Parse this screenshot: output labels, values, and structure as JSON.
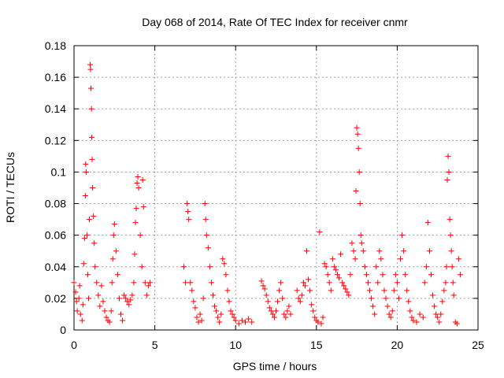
{
  "chart_data": {
    "type": "scatter",
    "title": "Day 068 of 2014, Rate Of TEC Index for receiver cnmr",
    "xlabel": "GPS time / hours",
    "ylabel": "ROTI / TECUs",
    "xlim": [
      0,
      25
    ],
    "ylim": [
      0,
      0.18
    ],
    "xticks": [
      0,
      5,
      10,
      15,
      20,
      25
    ],
    "yticks": [
      0,
      0.02,
      0.04,
      0.06,
      0.08,
      0.1,
      0.12,
      0.14,
      0.16,
      0.18
    ],
    "grid": true,
    "marker": "plus",
    "series_color": "#ff0000",
    "series": [
      {
        "name": "ROTI",
        "points": [
          [
            0.0,
            0.03
          ],
          [
            0.1,
            0.024
          ],
          [
            0.15,
            0.018
          ],
          [
            0.2,
            0.012
          ],
          [
            0.3,
            0.02
          ],
          [
            0.35,
            0.028
          ],
          [
            0.4,
            0.01
          ],
          [
            0.5,
            0.006
          ],
          [
            0.55,
            0.016
          ],
          [
            0.6,
            0.042
          ],
          [
            0.65,
            0.058
          ],
          [
            0.7,
            0.085
          ],
          [
            0.72,
            0.105
          ],
          [
            0.75,
            0.1
          ],
          [
            0.8,
            0.06
          ],
          [
            0.85,
            0.035
          ],
          [
            0.9,
            0.02
          ],
          [
            0.95,
            0.07
          ],
          [
            1.0,
            0.168
          ],
          [
            1.02,
            0.165
          ],
          [
            1.05,
            0.153
          ],
          [
            1.08,
            0.14
          ],
          [
            1.1,
            0.122
          ],
          [
            1.12,
            0.108
          ],
          [
            1.15,
            0.09
          ],
          [
            1.2,
            0.072
          ],
          [
            1.25,
            0.055
          ],
          [
            1.3,
            0.04
          ],
          [
            1.4,
            0.03
          ],
          [
            1.5,
            0.022
          ],
          [
            1.6,
            0.015
          ],
          [
            1.7,
            0.028
          ],
          [
            1.8,
            0.018
          ],
          [
            1.9,
            0.012
          ],
          [
            2.0,
            0.008
          ],
          [
            2.1,
            0.006
          ],
          [
            2.2,
            0.005
          ],
          [
            2.3,
            0.012
          ],
          [
            2.35,
            0.03
          ],
          [
            2.4,
            0.045
          ],
          [
            2.45,
            0.06
          ],
          [
            2.5,
            0.067
          ],
          [
            2.6,
            0.05
          ],
          [
            2.7,
            0.035
          ],
          [
            2.8,
            0.02
          ],
          [
            2.9,
            0.01
          ],
          [
            3.0,
            0.006
          ],
          [
            3.1,
            0.022
          ],
          [
            3.2,
            0.02
          ],
          [
            3.3,
            0.018
          ],
          [
            3.4,
            0.016
          ],
          [
            3.5,
            0.019
          ],
          [
            3.6,
            0.022
          ],
          [
            3.7,
            0.03
          ],
          [
            3.75,
            0.048
          ],
          [
            3.8,
            0.068
          ],
          [
            3.85,
            0.077
          ],
          [
            3.9,
            0.093
          ],
          [
            3.95,
            0.097
          ],
          [
            4.0,
            0.09
          ],
          [
            4.1,
            0.06
          ],
          [
            4.2,
            0.04
          ],
          [
            4.25,
            0.095
          ],
          [
            4.3,
            0.078
          ],
          [
            4.4,
            0.03
          ],
          [
            4.5,
            0.022
          ],
          [
            4.6,
            0.028
          ],
          [
            4.7,
            0.03
          ],
          [
            6.8,
            0.04
          ],
          [
            6.9,
            0.03
          ],
          [
            7.0,
            0.08
          ],
          [
            7.05,
            0.075
          ],
          [
            7.1,
            0.07
          ],
          [
            7.2,
            0.03
          ],
          [
            7.3,
            0.025
          ],
          [
            7.4,
            0.018
          ],
          [
            7.5,
            0.014
          ],
          [
            7.6,
            0.008
          ],
          [
            7.7,
            0.005
          ],
          [
            7.8,
            0.01
          ],
          [
            7.9,
            0.006
          ],
          [
            8.0,
            0.02
          ],
          [
            8.1,
            0.08
          ],
          [
            8.15,
            0.07
          ],
          [
            8.2,
            0.06
          ],
          [
            8.3,
            0.052
          ],
          [
            8.4,
            0.04
          ],
          [
            8.5,
            0.03
          ],
          [
            8.6,
            0.022
          ],
          [
            8.7,
            0.015
          ],
          [
            8.8,
            0.012
          ],
          [
            8.9,
            0.008
          ],
          [
            9.0,
            0.005
          ],
          [
            9.1,
            0.01
          ],
          [
            9.2,
            0.045
          ],
          [
            9.3,
            0.042
          ],
          [
            9.4,
            0.035
          ],
          [
            9.5,
            0.025
          ],
          [
            9.6,
            0.018
          ],
          [
            9.7,
            0.012
          ],
          [
            9.8,
            0.01
          ],
          [
            9.9,
            0.008
          ],
          [
            10.0,
            0.006
          ],
          [
            10.2,
            0.004
          ],
          [
            10.4,
            0.006
          ],
          [
            10.6,
            0.005
          ],
          [
            10.8,
            0.007
          ],
          [
            11.0,
            0.005
          ],
          [
            11.6,
            0.031
          ],
          [
            11.7,
            0.028
          ],
          [
            11.8,
            0.026
          ],
          [
            11.9,
            0.022
          ],
          [
            12.0,
            0.018
          ],
          [
            12.1,
            0.014
          ],
          [
            12.2,
            0.012
          ],
          [
            12.3,
            0.01
          ],
          [
            12.4,
            0.008
          ],
          [
            12.5,
            0.012
          ],
          [
            12.6,
            0.018
          ],
          [
            12.7,
            0.025
          ],
          [
            12.8,
            0.03
          ],
          [
            12.9,
            0.02
          ],
          [
            13.0,
            0.01
          ],
          [
            13.1,
            0.008
          ],
          [
            13.2,
            0.012
          ],
          [
            13.3,
            0.015
          ],
          [
            13.4,
            0.01
          ],
          [
            13.8,
            0.025
          ],
          [
            13.9,
            0.02
          ],
          [
            14.0,
            0.018
          ],
          [
            14.1,
            0.022
          ],
          [
            14.2,
            0.03
          ],
          [
            14.3,
            0.028
          ],
          [
            14.4,
            0.05
          ],
          [
            14.5,
            0.032
          ],
          [
            14.6,
            0.025
          ],
          [
            14.7,
            0.016
          ],
          [
            14.8,
            0.012
          ],
          [
            14.9,
            0.008
          ],
          [
            15.0,
            0.006
          ],
          [
            15.1,
            0.005
          ],
          [
            15.2,
            0.062
          ],
          [
            15.3,
            0.004
          ],
          [
            15.4,
            0.008
          ],
          [
            15.5,
            0.042
          ],
          [
            15.6,
            0.04
          ],
          [
            15.7,
            0.035
          ],
          [
            15.8,
            0.03
          ],
          [
            15.9,
            0.025
          ],
          [
            16.0,
            0.045
          ],
          [
            16.1,
            0.04
          ],
          [
            16.2,
            0.038
          ],
          [
            16.3,
            0.035
          ],
          [
            16.4,
            0.033
          ],
          [
            16.5,
            0.048
          ],
          [
            16.6,
            0.03
          ],
          [
            16.7,
            0.028
          ],
          [
            16.8,
            0.026
          ],
          [
            16.9,
            0.024
          ],
          [
            17.0,
            0.022
          ],
          [
            17.1,
            0.035
          ],
          [
            17.2,
            0.055
          ],
          [
            17.3,
            0.05
          ],
          [
            17.4,
            0.045
          ],
          [
            17.45,
            0.088
          ],
          [
            17.5,
            0.128
          ],
          [
            17.55,
            0.124
          ],
          [
            17.6,
            0.115
          ],
          [
            17.65,
            0.1
          ],
          [
            17.7,
            0.08
          ],
          [
            17.75,
            0.06
          ],
          [
            17.8,
            0.055
          ],
          [
            17.9,
            0.05
          ],
          [
            18.0,
            0.04
          ],
          [
            18.1,
            0.035
          ],
          [
            18.2,
            0.03
          ],
          [
            18.3,
            0.025
          ],
          [
            18.4,
            0.02
          ],
          [
            18.5,
            0.015
          ],
          [
            18.6,
            0.01
          ],
          [
            18.7,
            0.04
          ],
          [
            18.8,
            0.03
          ],
          [
            18.9,
            0.05
          ],
          [
            19.0,
            0.045
          ],
          [
            19.1,
            0.035
          ],
          [
            19.2,
            0.025
          ],
          [
            19.3,
            0.02
          ],
          [
            19.4,
            0.015
          ],
          [
            19.5,
            0.01
          ],
          [
            19.6,
            0.008
          ],
          [
            19.7,
            0.012
          ],
          [
            19.8,
            0.025
          ],
          [
            19.9,
            0.035
          ],
          [
            20.0,
            0.03
          ],
          [
            20.1,
            0.02
          ],
          [
            20.2,
            0.045
          ],
          [
            20.3,
            0.06
          ],
          [
            20.4,
            0.05
          ],
          [
            20.5,
            0.035
          ],
          [
            20.6,
            0.025
          ],
          [
            20.7,
            0.018
          ],
          [
            20.8,
            0.012
          ],
          [
            20.9,
            0.008
          ],
          [
            21.0,
            0.006
          ],
          [
            21.2,
            0.005
          ],
          [
            21.4,
            0.01
          ],
          [
            21.6,
            0.008
          ],
          [
            21.7,
            0.03
          ],
          [
            21.8,
            0.04
          ],
          [
            21.9,
            0.068
          ],
          [
            22.0,
            0.05
          ],
          [
            22.1,
            0.035
          ],
          [
            22.2,
            0.022
          ],
          [
            22.3,
            0.015
          ],
          [
            22.4,
            0.01
          ],
          [
            22.5,
            0.008
          ],
          [
            22.6,
            0.005
          ],
          [
            22.7,
            0.01
          ],
          [
            22.8,
            0.018
          ],
          [
            22.9,
            0.025
          ],
          [
            23.0,
            0.03
          ],
          [
            23.05,
            0.04
          ],
          [
            23.1,
            0.095
          ],
          [
            23.15,
            0.11
          ],
          [
            23.2,
            0.1
          ],
          [
            23.25,
            0.07
          ],
          [
            23.3,
            0.06
          ],
          [
            23.35,
            0.05
          ],
          [
            23.4,
            0.04
          ],
          [
            23.45,
            0.03
          ],
          [
            23.5,
            0.022
          ],
          [
            23.6,
            0.005
          ],
          [
            23.7,
            0.004
          ],
          [
            23.8,
            0.045
          ],
          [
            23.9,
            0.035
          ]
        ]
      }
    ]
  }
}
